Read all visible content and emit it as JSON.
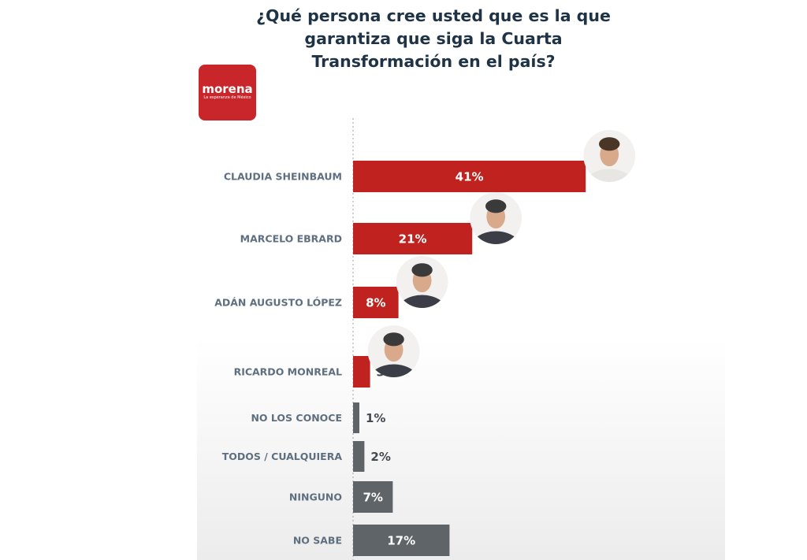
{
  "title_lines": [
    "¿Qué persona cree usted que es la que",
    "garantiza que siga la Cuarta",
    "Transformación en el país?"
  ],
  "logo": {
    "word": "morena",
    "tagline": "La esperanza de México"
  },
  "colors": {
    "candidate_bar": "#c0231f",
    "other_bar": "#5f6468",
    "category_text": "#5e6f80",
    "title_text": "#1f3346"
  },
  "chart_data": {
    "type": "bar",
    "orientation": "horizontal",
    "title": "¿Qué persona cree usted que es la que garantiza que siga la Cuarta Transformación en el país?",
    "categories": [
      "CLAUDIA SHEINBAUM",
      "MARCELO EBRARD",
      "ADÁN AUGUSTO LÓPEZ",
      "RICARDO MONREAL",
      "NO LOS CONOCE",
      "TODOS / CUALQUIERA",
      "NINGUNO",
      "NO SABE"
    ],
    "values": [
      41,
      21,
      8,
      3,
      1,
      2,
      7,
      17
    ],
    "labels": [
      "41%",
      "21%",
      "8%",
      "3%",
      "1%",
      "2%",
      "7%",
      "17%"
    ],
    "group": [
      "candidate",
      "candidate",
      "candidate",
      "candidate",
      "other",
      "other",
      "other",
      "other"
    ],
    "photos": [
      true,
      true,
      true,
      true,
      false,
      false,
      false,
      false
    ],
    "unit": "%",
    "grid": false,
    "legend": "none"
  }
}
